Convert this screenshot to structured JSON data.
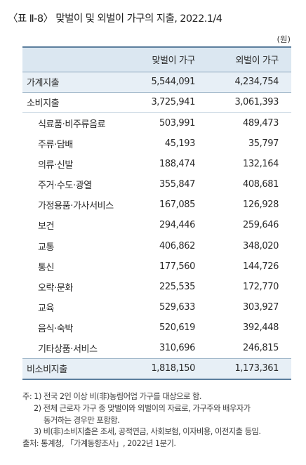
{
  "title": "〈표 Ⅱ-8〉 맞벌이 및 외벌이 가구의 지출, 2022.1/4",
  "unit": "(원)",
  "table": {
    "headers": [
      "",
      "맞벌이 가구",
      "외벌이 가구"
    ],
    "rows": [
      {
        "label": "가계지출",
        "dual": "5,544,091",
        "single": "4,234,754"
      },
      {
        "label": "소비지출",
        "dual": "3,725,941",
        "single": "3,061,393"
      },
      {
        "label": "식료품·비주류음료",
        "dual": "503,991",
        "single": "489,473"
      },
      {
        "label": "주류·담배",
        "dual": "45,193",
        "single": "35,797"
      },
      {
        "label": "의류·신발",
        "dual": "188,474",
        "single": "132,164"
      },
      {
        "label": "주거·수도·광열",
        "dual": "355,847",
        "single": "408,681"
      },
      {
        "label": "가정용품·가사서비스",
        "dual": "167,085",
        "single": "126,928"
      },
      {
        "label": "보건",
        "dual": "294,446",
        "single": "259,646"
      },
      {
        "label": "교통",
        "dual": "406,862",
        "single": "348,020"
      },
      {
        "label": "통신",
        "dual": "177,560",
        "single": "144,726"
      },
      {
        "label": "오락·문화",
        "dual": "225,535",
        "single": "172,770"
      },
      {
        "label": "교육",
        "dual": "529,633",
        "single": "303,927"
      },
      {
        "label": "음식·숙박",
        "dual": "520,619",
        "single": "392,448"
      },
      {
        "label": "기타상품·서비스",
        "dual": "310,696",
        "single": "246,815"
      },
      {
        "label": "비소비지출",
        "dual": "1,818,150",
        "single": "1,173,361"
      }
    ]
  },
  "notes": {
    "n1": "주: 1) 전국 2인 이상 비(非)농림어업 가구를 대상으로 함.",
    "n2a": "2) 전체 근로자 가구 중 맞벌이와 외벌이의 자료로, 가구주와 배우자가",
    "n2b": "동거하는 경우만 포함함.",
    "n3": "3) 비(非)소비지출은 조세, 공적연금, 사회보험, 이자비용, 이전지출 등임.",
    "source": "출처: 통계청, 「가계동향조사」, 2022년 1분기."
  }
}
